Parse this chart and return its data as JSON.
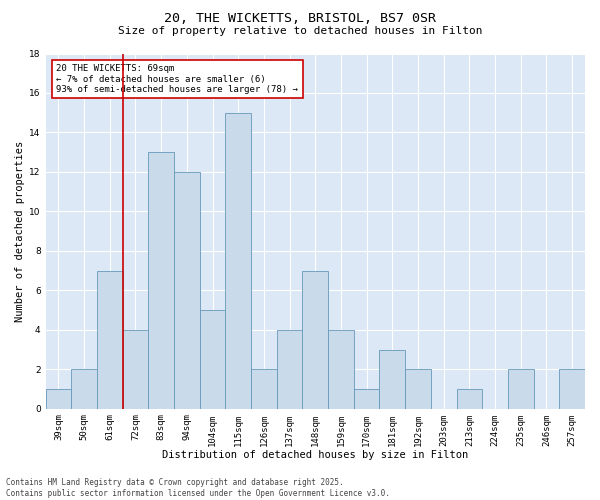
{
  "title": "20, THE WICKETTS, BRISTOL, BS7 0SR",
  "subtitle": "Size of property relative to detached houses in Filton",
  "xlabel": "Distribution of detached houses by size in Filton",
  "ylabel": "Number of detached properties",
  "categories": [
    "39sqm",
    "50sqm",
    "61sqm",
    "72sqm",
    "83sqm",
    "94sqm",
    "104sqm",
    "115sqm",
    "126sqm",
    "137sqm",
    "148sqm",
    "159sqm",
    "170sqm",
    "181sqm",
    "192sqm",
    "203sqm",
    "213sqm",
    "224sqm",
    "235sqm",
    "246sqm",
    "257sqm"
  ],
  "values": [
    1,
    2,
    7,
    4,
    13,
    12,
    5,
    15,
    2,
    4,
    7,
    4,
    1,
    3,
    2,
    0,
    1,
    0,
    2,
    0,
    2
  ],
  "bar_color": "#c9daea",
  "bar_edge_color": "#6699bb",
  "bar_linewidth": 0.6,
  "vline_index": 2.5,
  "vline_color": "#cc0000",
  "vline_linewidth": 1.2,
  "annotation_text": "20 THE WICKETTS: 69sqm\n← 7% of detached houses are smaller (6)\n93% of semi-detached houses are larger (78) →",
  "annotation_box_color": "#cc0000",
  "annotation_fontsize": 6.5,
  "ylim": [
    0,
    18
  ],
  "yticks": [
    0,
    2,
    4,
    6,
    8,
    10,
    12,
    14,
    16,
    18
  ],
  "background_color": "#dce8f5",
  "grid_color": "white",
  "footer": "Contains HM Land Registry data © Crown copyright and database right 2025.\nContains public sector information licensed under the Open Government Licence v3.0.",
  "title_fontsize": 9.5,
  "subtitle_fontsize": 8,
  "xlabel_fontsize": 7.5,
  "ylabel_fontsize": 7.5,
  "tick_fontsize": 6.5,
  "footer_fontsize": 5.5
}
